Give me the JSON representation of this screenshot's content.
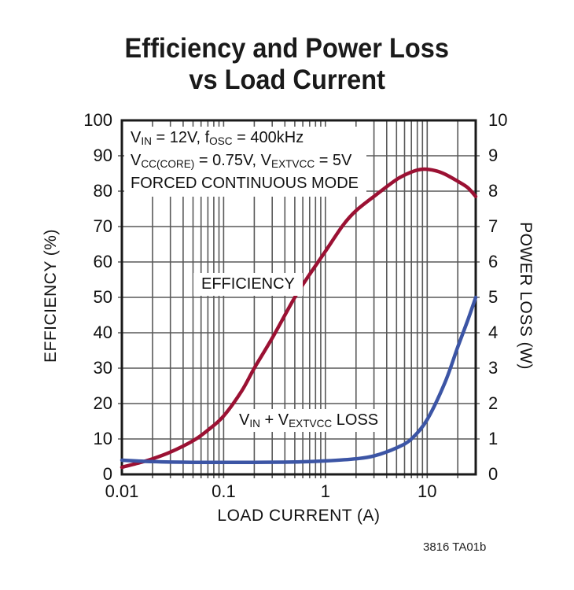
{
  "title": {
    "line1": "Efficiency and Power Loss",
    "line2": "vs Load Current"
  },
  "footer": {
    "figure_code": "3816 TA01b"
  },
  "conditions": {
    "lines": [
      [
        {
          "t": "V"
        },
        {
          "s": "IN"
        },
        {
          "t": " = 12V, f"
        },
        {
          "s": "OSC"
        },
        {
          "t": " = 400kHz"
        }
      ],
      [
        {
          "t": "V"
        },
        {
          "s": "CC(CORE)"
        },
        {
          "t": " = 0.75V, V"
        },
        {
          "s": "EXTVCC"
        },
        {
          "t": " = 5V"
        }
      ],
      [
        {
          "t": "FORCED CONTINUOUS MODE"
        }
      ]
    ]
  },
  "curve_labels": {
    "efficiency": [
      {
        "t": "EFFICIENCY"
      }
    ],
    "loss": [
      {
        "t": "V"
      },
      {
        "s": "IN"
      },
      {
        "t": " + V"
      },
      {
        "s": "EXTVCC"
      },
      {
        "t": " LOSS"
      }
    ]
  },
  "colors": {
    "curve_efficiency": "#9B1133",
    "curve_loss": "#3C55A5",
    "grid": "#595959",
    "frame": "#1a1a1a",
    "text": "#111111",
    "background": "#ffffff"
  },
  "chart_data": {
    "type": "line",
    "title": "Efficiency and Power Loss vs Load Current",
    "xlabel": "LOAD CURRENT (A)",
    "ylabel_left": "EFFICIENCY (%)",
    "ylabel_right": "POWER LOSS (W)",
    "x_scale": "log",
    "xlim": [
      0.01,
      30
    ],
    "ylim_left": [
      0,
      100
    ],
    "ylim_right": [
      0,
      10
    ],
    "x_tick_values": [
      0.01,
      0.1,
      1,
      10
    ],
    "x_tick_labels": [
      "0.01",
      "0.1",
      "1",
      "10"
    ],
    "y_ticks_left": [
      0,
      10,
      20,
      30,
      40,
      50,
      60,
      70,
      80,
      90,
      100
    ],
    "y_ticks_right": [
      0,
      1,
      2,
      3,
      4,
      5,
      6,
      7,
      8,
      9,
      10
    ],
    "grid": true,
    "legend_position": "in-plot-labels",
    "series": [
      {
        "name": "EFFICIENCY",
        "axis": "left",
        "color": "#9B1133",
        "points": [
          [
            0.01,
            2
          ],
          [
            0.015,
            3.3
          ],
          [
            0.02,
            4.4
          ],
          [
            0.03,
            6.3
          ],
          [
            0.05,
            9.5
          ],
          [
            0.07,
            12.5
          ],
          [
            0.1,
            16.5
          ],
          [
            0.15,
            23.5
          ],
          [
            0.2,
            30
          ],
          [
            0.3,
            38.5
          ],
          [
            0.5,
            50
          ],
          [
            0.7,
            56.5
          ],
          [
            1,
            63
          ],
          [
            1.5,
            70.5
          ],
          [
            2,
            74.5
          ],
          [
            3,
            78.5
          ],
          [
            5,
            83.3
          ],
          [
            7,
            85.4
          ],
          [
            9,
            86.2
          ],
          [
            12,
            85.8
          ],
          [
            15,
            84.8
          ],
          [
            20,
            82.8
          ],
          [
            25,
            81
          ],
          [
            30,
            78.5
          ]
        ]
      },
      {
        "name": "VIN + VEXTVCC LOSS",
        "axis": "right",
        "color": "#3C55A5",
        "points": [
          [
            0.01,
            0.4
          ],
          [
            0.02,
            0.36
          ],
          [
            0.05,
            0.34
          ],
          [
            0.1,
            0.34
          ],
          [
            0.2,
            0.34
          ],
          [
            0.5,
            0.35
          ],
          [
            1,
            0.38
          ],
          [
            2,
            0.44
          ],
          [
            3,
            0.52
          ],
          [
            5,
            0.75
          ],
          [
            7,
            1.0
          ],
          [
            10,
            1.55
          ],
          [
            15,
            2.6
          ],
          [
            20,
            3.6
          ],
          [
            25,
            4.35
          ],
          [
            30,
            5.0
          ]
        ]
      }
    ]
  }
}
